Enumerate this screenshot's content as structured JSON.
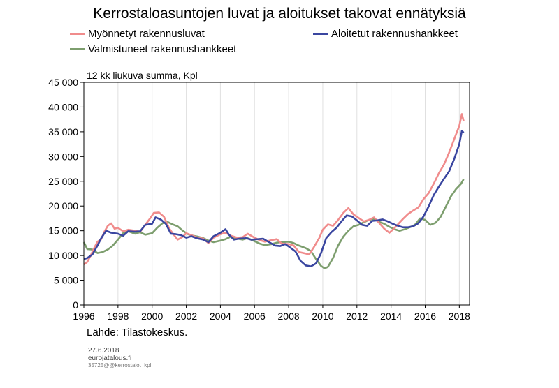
{
  "chart_data": {
    "type": "line",
    "title": "Kerrostaloasuntojen luvat ja aloitukset takovat ennätyksiä",
    "unit_label": "12 kk liukuva summa, Kpl",
    "ylim": [
      0,
      45000
    ],
    "xlim": [
      1996,
      2018.6
    ],
    "y_ticks": [
      {
        "value": 0,
        "label": "0"
      },
      {
        "value": 5000,
        "label": "5 000"
      },
      {
        "value": 10000,
        "label": "10 000"
      },
      {
        "value": 15000,
        "label": "15 000"
      },
      {
        "value": 20000,
        "label": "20 000"
      },
      {
        "value": 25000,
        "label": "25 000"
      },
      {
        "value": 30000,
        "label": "30 000"
      },
      {
        "value": 35000,
        "label": "35 000"
      },
      {
        "value": 40000,
        "label": "40 000"
      },
      {
        "value": 45000,
        "label": "45 000"
      }
    ],
    "x_ticks": [
      {
        "value": 1996,
        "label": "1996"
      },
      {
        "value": 1998,
        "label": "1998"
      },
      {
        "value": 2000,
        "label": "2000"
      },
      {
        "value": 2002,
        "label": "2002"
      },
      {
        "value": 2004,
        "label": "2004"
      },
      {
        "value": 2006,
        "label": "2006"
      },
      {
        "value": 2008,
        "label": "2008"
      },
      {
        "value": 2010,
        "label": "2010"
      },
      {
        "value": 2012,
        "label": "2012"
      },
      {
        "value": 2014,
        "label": "2014"
      },
      {
        "value": 2016,
        "label": "2016"
      },
      {
        "value": 2018,
        "label": "2018"
      }
    ],
    "legend_placement": "top",
    "series": [
      {
        "name": "Myönnetyt rakennusluvat",
        "color": "#f08c8c",
        "points": [
          [
            1996,
            8200
          ],
          [
            1996.2,
            8700
          ],
          [
            1996.4,
            10000
          ],
          [
            1996.6,
            11500
          ],
          [
            1996.8,
            12800
          ],
          [
            1997,
            13200
          ],
          [
            1997.2,
            14800
          ],
          [
            1997.4,
            16000
          ],
          [
            1997.6,
            16500
          ],
          [
            1997.8,
            15400
          ],
          [
            1998,
            15600
          ],
          [
            1998.3,
            14900
          ],
          [
            1998.6,
            15200
          ],
          [
            1999,
            15000
          ],
          [
            1999.3,
            14800
          ],
          [
            1999.6,
            16200
          ],
          [
            1999.9,
            17600
          ],
          [
            2000.1,
            18600
          ],
          [
            2000.4,
            18700
          ],
          [
            2000.7,
            17800
          ],
          [
            2001,
            15500
          ],
          [
            2001.2,
            14500
          ],
          [
            2001.5,
            13200
          ],
          [
            2001.8,
            13800
          ],
          [
            2002,
            14500
          ],
          [
            2002.3,
            14100
          ],
          [
            2002.6,
            13700
          ],
          [
            2003,
            13400
          ],
          [
            2003.3,
            12500
          ],
          [
            2003.6,
            13600
          ],
          [
            2004,
            14300
          ],
          [
            2004.3,
            14600
          ],
          [
            2004.6,
            14000
          ],
          [
            2005,
            13600
          ],
          [
            2005.3,
            13700
          ],
          [
            2005.6,
            14400
          ],
          [
            2006,
            13600
          ],
          [
            2006.3,
            13100
          ],
          [
            2006.6,
            12800
          ],
          [
            2007,
            13100
          ],
          [
            2007.3,
            13300
          ],
          [
            2007.6,
            12400
          ],
          [
            2008,
            12300
          ],
          [
            2008.3,
            12000
          ],
          [
            2008.6,
            10700
          ],
          [
            2009,
            10400
          ],
          [
            2009.2,
            10200
          ],
          [
            2009.5,
            11800
          ],
          [
            2009.8,
            13600
          ],
          [
            2010,
            15200
          ],
          [
            2010.3,
            16300
          ],
          [
            2010.6,
            16000
          ],
          [
            2010.9,
            17200
          ],
          [
            2011.2,
            18600
          ],
          [
            2011.5,
            19600
          ],
          [
            2011.8,
            18300
          ],
          [
            2012.1,
            17600
          ],
          [
            2012.4,
            16900
          ],
          [
            2012.7,
            17200
          ],
          [
            2013,
            17700
          ],
          [
            2013.3,
            16600
          ],
          [
            2013.6,
            15400
          ],
          [
            2013.9,
            14600
          ],
          [
            2014.1,
            15200
          ],
          [
            2014.4,
            16300
          ],
          [
            2014.7,
            17400
          ],
          [
            2015,
            18400
          ],
          [
            2015.3,
            19100
          ],
          [
            2015.6,
            19700
          ],
          [
            2015.9,
            21400
          ],
          [
            2016.2,
            22600
          ],
          [
            2016.5,
            24500
          ],
          [
            2016.8,
            26600
          ],
          [
            2017.1,
            28400
          ],
          [
            2017.4,
            30800
          ],
          [
            2017.7,
            33500
          ],
          [
            2018,
            36200
          ],
          [
            2018.15,
            38600
          ],
          [
            2018.25,
            37200
          ]
        ]
      },
      {
        "name": "Aloitetut rakennushankkeet",
        "color": "#3a46a0",
        "points": [
          [
            1996,
            9300
          ],
          [
            1996.2,
            9500
          ],
          [
            1996.5,
            10200
          ],
          [
            1996.8,
            12000
          ],
          [
            1997,
            13400
          ],
          [
            1997.3,
            15000
          ],
          [
            1997.6,
            14600
          ],
          [
            1998,
            14400
          ],
          [
            1998.3,
            14000
          ],
          [
            1998.6,
            14900
          ],
          [
            1999,
            14800
          ],
          [
            1999.3,
            14900
          ],
          [
            1999.6,
            16200
          ],
          [
            2000,
            16400
          ],
          [
            2000.2,
            17700
          ],
          [
            2000.5,
            17300
          ],
          [
            2000.8,
            16400
          ],
          [
            2001.1,
            14400
          ],
          [
            2001.4,
            14300
          ],
          [
            2001.7,
            14100
          ],
          [
            2002,
            13600
          ],
          [
            2002.3,
            13900
          ],
          [
            2002.6,
            13500
          ],
          [
            2003,
            13200
          ],
          [
            2003.3,
            12700
          ],
          [
            2003.6,
            13900
          ],
          [
            2004,
            14600
          ],
          [
            2004.3,
            15300
          ],
          [
            2004.5,
            14200
          ],
          [
            2004.8,
            13200
          ],
          [
            2005.1,
            13400
          ],
          [
            2005.5,
            13500
          ],
          [
            2005.8,
            13200
          ],
          [
            2006.2,
            13300
          ],
          [
            2006.5,
            13400
          ],
          [
            2006.8,
            12800
          ],
          [
            2007.2,
            12000
          ],
          [
            2007.5,
            11900
          ],
          [
            2007.8,
            12300
          ],
          [
            2008.1,
            11600
          ],
          [
            2008.4,
            10800
          ],
          [
            2008.7,
            8900
          ],
          [
            2009,
            8000
          ],
          [
            2009.3,
            7800
          ],
          [
            2009.6,
            8400
          ],
          [
            2009.9,
            10500
          ],
          [
            2010.2,
            13500
          ],
          [
            2010.5,
            14700
          ],
          [
            2010.8,
            15600
          ],
          [
            2011.1,
            16900
          ],
          [
            2011.4,
            18100
          ],
          [
            2011.7,
            17900
          ],
          [
            2012,
            17100
          ],
          [
            2012.3,
            16200
          ],
          [
            2012.6,
            16000
          ],
          [
            2012.9,
            17000
          ],
          [
            2013.2,
            17100
          ],
          [
            2013.5,
            17300
          ],
          [
            2013.8,
            16900
          ],
          [
            2014.1,
            16400
          ],
          [
            2014.4,
            16000
          ],
          [
            2014.7,
            15700
          ],
          [
            2015,
            15700
          ],
          [
            2015.3,
            15900
          ],
          [
            2015.6,
            16500
          ],
          [
            2015.9,
            17900
          ],
          [
            2016.2,
            19900
          ],
          [
            2016.5,
            22200
          ],
          [
            2016.8,
            23900
          ],
          [
            2017.1,
            25500
          ],
          [
            2017.4,
            27000
          ],
          [
            2017.7,
            29500
          ],
          [
            2018,
            32500
          ],
          [
            2018.15,
            35200
          ],
          [
            2018.25,
            34800
          ]
        ]
      },
      {
        "name": "Valmistuneet rakennushankkeet",
        "color": "#7d9e6e",
        "points": [
          [
            1996,
            12700
          ],
          [
            1996.2,
            11300
          ],
          [
            1996.5,
            11200
          ],
          [
            1996.8,
            10500
          ],
          [
            1997.1,
            10700
          ],
          [
            1997.4,
            11200
          ],
          [
            1997.7,
            12000
          ],
          [
            1998,
            13200
          ],
          [
            1998.3,
            14500
          ],
          [
            1998.6,
            14900
          ],
          [
            1999,
            14400
          ],
          [
            1999.3,
            14700
          ],
          [
            1999.6,
            14200
          ],
          [
            2000,
            14500
          ],
          [
            2000.3,
            15600
          ],
          [
            2000.6,
            16500
          ],
          [
            2000.9,
            16800
          ],
          [
            2001.2,
            16300
          ],
          [
            2001.5,
            15900
          ],
          [
            2001.8,
            15000
          ],
          [
            2002.1,
            14300
          ],
          [
            2002.4,
            14000
          ],
          [
            2002.7,
            13800
          ],
          [
            2003,
            13500
          ],
          [
            2003.3,
            13000
          ],
          [
            2003.6,
            12700
          ],
          [
            2004,
            13000
          ],
          [
            2004.3,
            13300
          ],
          [
            2004.6,
            13800
          ],
          [
            2005,
            13400
          ],
          [
            2005.3,
            13200
          ],
          [
            2005.6,
            13500
          ],
          [
            2006,
            12900
          ],
          [
            2006.3,
            12400
          ],
          [
            2006.6,
            12100
          ],
          [
            2007,
            12300
          ],
          [
            2007.3,
            12600
          ],
          [
            2007.6,
            12700
          ],
          [
            2008,
            12800
          ],
          [
            2008.3,
            12500
          ],
          [
            2008.6,
            12000
          ],
          [
            2009,
            11500
          ],
          [
            2009.3,
            10900
          ],
          [
            2009.6,
            9300
          ],
          [
            2009.9,
            7900
          ],
          [
            2010.1,
            7400
          ],
          [
            2010.3,
            7700
          ],
          [
            2010.6,
            9500
          ],
          [
            2010.9,
            12000
          ],
          [
            2011.2,
            13800
          ],
          [
            2011.5,
            15000
          ],
          [
            2011.8,
            15900
          ],
          [
            2012.1,
            16200
          ],
          [
            2012.4,
            16700
          ],
          [
            2012.7,
            17200
          ],
          [
            2013,
            17400
          ],
          [
            2013.3,
            16800
          ],
          [
            2013.6,
            16400
          ],
          [
            2013.9,
            15800
          ],
          [
            2014.2,
            15300
          ],
          [
            2014.5,
            15000
          ],
          [
            2014.8,
            15300
          ],
          [
            2015.1,
            15700
          ],
          [
            2015.4,
            16200
          ],
          [
            2015.7,
            17500
          ],
          [
            2016,
            17200
          ],
          [
            2016.3,
            16200
          ],
          [
            2016.6,
            16600
          ],
          [
            2016.9,
            17800
          ],
          [
            2017.2,
            19800
          ],
          [
            2017.5,
            21900
          ],
          [
            2017.8,
            23400
          ],
          [
            2018.1,
            24500
          ],
          [
            2018.25,
            25400
          ]
        ]
      }
    ]
  },
  "footer": {
    "source": "Lähde: Tilastokeskus.",
    "date": "27.6.2018",
    "site": "eurojatalous.fi",
    "code": "35725@@kerrostalot_kpl"
  }
}
